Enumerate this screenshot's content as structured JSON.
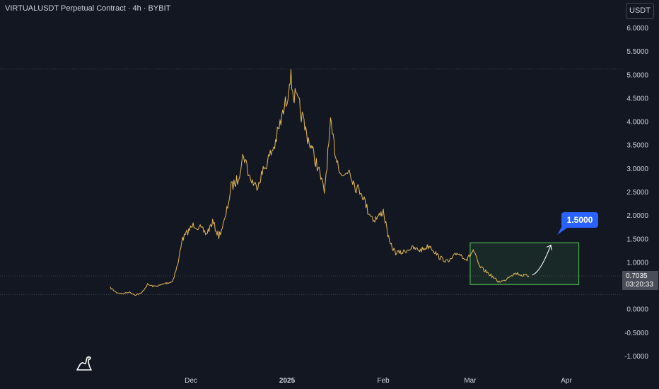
{
  "header": {
    "title": "VIRTUALUSDT Perpetual Contract · 4h · BYBIT",
    "unit_button": "USDT"
  },
  "price_box": {
    "price": "0.7035",
    "countdown": "03:20:33"
  },
  "target": {
    "label": "1.5000",
    "value": 1.5
  },
  "colors": {
    "background": "#131722",
    "candle": "#f0c15a",
    "box_border": "#4caf50",
    "callout": "#2962ff",
    "axis_text": "#d1d4dc"
  },
  "chart_data": {
    "type": "line",
    "title": "VIRTUALUSDT Perpetual Contract · 4h · BYBIT",
    "xlabel": "",
    "ylabel": "",
    "ylim": [
      -1.1,
      6.1
    ],
    "y_ticks": [
      "6.0000",
      "5.5000",
      "5.0000",
      "4.5000",
      "4.0000",
      "3.5000",
      "3.0000",
      "2.5000",
      "2.0000",
      "1.5000",
      "1.0000",
      "0.5000",
      "0.0000",
      "-0.5000",
      "-1.0000"
    ],
    "x_ticks": [
      {
        "label": "Dec",
        "date": "2024-12-01"
      },
      {
        "label": "2025",
        "date": "2025-01-01"
      },
      {
        "label": "Feb",
        "date": "2025-02-01"
      },
      {
        "label": "Mar",
        "date": "2025-03-01"
      },
      {
        "label": "Apr",
        "date": "2025-04-01"
      }
    ],
    "series": [
      {
        "points": [
          [
            "2024-11-05",
            0.45
          ],
          [
            "2024-11-07",
            0.35
          ],
          [
            "2024-11-09",
            0.32
          ],
          [
            "2024-11-11",
            0.36
          ],
          [
            "2024-11-13",
            0.3
          ],
          [
            "2024-11-15",
            0.33
          ],
          [
            "2024-11-17",
            0.52
          ],
          [
            "2024-11-19",
            0.48
          ],
          [
            "2024-11-21",
            0.5
          ],
          [
            "2024-11-23",
            0.55
          ],
          [
            "2024-11-25",
            0.58
          ],
          [
            "2024-11-27",
            1.0
          ],
          [
            "2024-11-28",
            1.45
          ],
          [
            "2024-11-30",
            1.65
          ],
          [
            "2024-12-02",
            1.8
          ],
          [
            "2024-12-04",
            1.72
          ],
          [
            "2024-12-06",
            1.6
          ],
          [
            "2024-12-08",
            1.85
          ],
          [
            "2024-12-10",
            1.55
          ],
          [
            "2024-12-12",
            1.9
          ],
          [
            "2024-12-14",
            2.6
          ],
          [
            "2024-12-16",
            2.75
          ],
          [
            "2024-12-18",
            3.3
          ],
          [
            "2024-12-20",
            2.8
          ],
          [
            "2024-12-22",
            2.6
          ],
          [
            "2024-12-24",
            2.9
          ],
          [
            "2024-12-26",
            3.2
          ],
          [
            "2024-12-28",
            3.5
          ],
          [
            "2024-12-30",
            4.0
          ],
          [
            "2025-01-01",
            4.5
          ],
          [
            "2025-01-02",
            5.0
          ],
          [
            "2025-01-03",
            4.6
          ],
          [
            "2025-01-05",
            4.3
          ],
          [
            "2025-01-07",
            3.8
          ],
          [
            "2025-01-09",
            3.4
          ],
          [
            "2025-01-11",
            3.0
          ],
          [
            "2025-01-13",
            2.5
          ],
          [
            "2025-01-15",
            3.9
          ],
          [
            "2025-01-17",
            3.2
          ],
          [
            "2025-01-19",
            2.8
          ],
          [
            "2025-01-21",
            3.0
          ],
          [
            "2025-01-23",
            2.6
          ],
          [
            "2025-01-25",
            2.5
          ],
          [
            "2025-01-27",
            2.1
          ],
          [
            "2025-01-29",
            1.9
          ],
          [
            "2025-01-31",
            2.0
          ],
          [
            "2025-02-01",
            2.1
          ],
          [
            "2025-02-03",
            1.4
          ],
          [
            "2025-02-05",
            1.2
          ],
          [
            "2025-02-07",
            1.2
          ],
          [
            "2025-02-10",
            1.3
          ],
          [
            "2025-02-13",
            1.25
          ],
          [
            "2025-02-16",
            1.35
          ],
          [
            "2025-02-19",
            1.1
          ],
          [
            "2025-02-22",
            1.0
          ],
          [
            "2025-02-25",
            1.2
          ],
          [
            "2025-02-28",
            1.05
          ],
          [
            "2025-03-02",
            1.25
          ],
          [
            "2025-03-04",
            0.9
          ],
          [
            "2025-03-06",
            0.8
          ],
          [
            "2025-03-08",
            0.7
          ],
          [
            "2025-03-10",
            0.58
          ],
          [
            "2025-03-12",
            0.6
          ],
          [
            "2025-03-14",
            0.72
          ],
          [
            "2025-03-16",
            0.76
          ],
          [
            "2025-03-18",
            0.71
          ],
          [
            "2025-03-20",
            0.7
          ]
        ]
      }
    ],
    "resistance_level": 5.12,
    "support_level": 0.31,
    "current_price": 0.7035,
    "target_zone": {
      "x_start": "2025-03-01",
      "x_end": "2025-04-05",
      "y_low": 0.52,
      "y_high": 1.41
    },
    "projection": {
      "from": [
        "2025-03-21",
        0.72
      ],
      "to": [
        "2025-03-27",
        1.36
      ]
    },
    "grid": false,
    "legend": "none"
  }
}
